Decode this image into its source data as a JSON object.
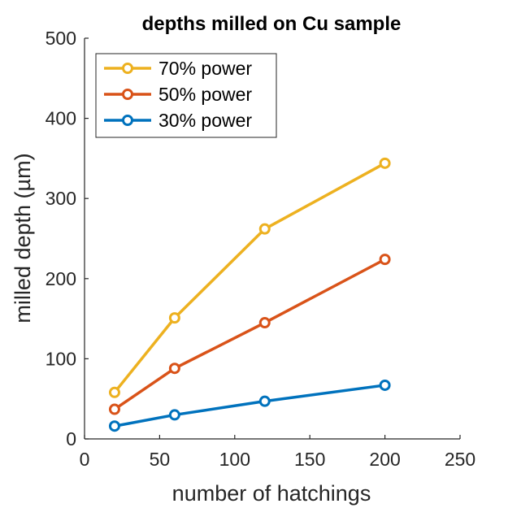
{
  "chart_data": {
    "type": "line",
    "title": "depths milled on Cu sample",
    "xlabel": "number of hatchings",
    "ylabel": "milled depth (µm)",
    "xlim": [
      0,
      250
    ],
    "ylim": [
      0,
      500
    ],
    "xticks": [
      0,
      50,
      100,
      150,
      200,
      250
    ],
    "yticks": [
      0,
      100,
      200,
      300,
      400,
      500
    ],
    "grid": false,
    "legend_position": "top-left",
    "x": [
      20,
      60,
      120,
      200
    ],
    "series": [
      {
        "name": "70% power",
        "color": "#EDB120",
        "values": [
          58,
          151,
          262,
          344
        ]
      },
      {
        "name": "50% power",
        "color": "#D95319",
        "values": [
          37,
          88,
          145,
          224
        ]
      },
      {
        "name": "30% power",
        "color": "#0072BD",
        "values": [
          16,
          30,
          47,
          67
        ]
      }
    ]
  }
}
